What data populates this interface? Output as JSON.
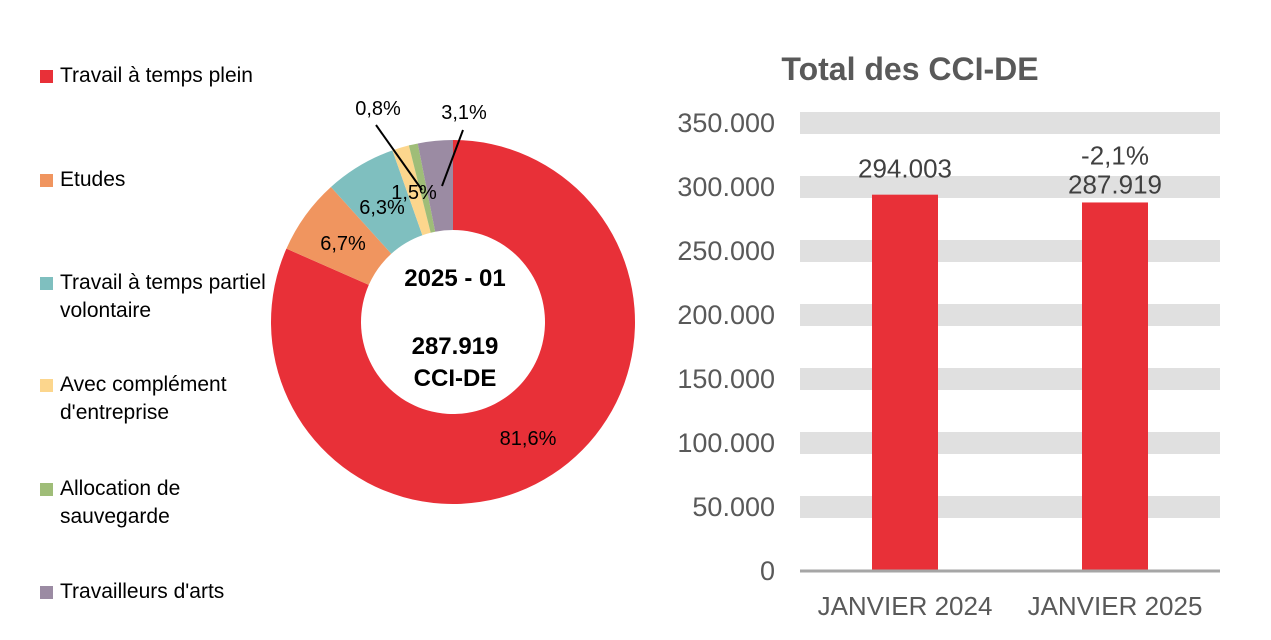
{
  "legend": [
    {
      "label": "Travail à temps plein",
      "color": "#e83038"
    },
    {
      "label": "Etudes",
      "color": "#f0955f"
    },
    {
      "label": "Travail à temps partiel volontaire",
      "color": "#7fbfbf"
    },
    {
      "label": "Avec complément d'entreprise",
      "color": "#fcd68d"
    },
    {
      "label": "Allocation de sauvegarde",
      "color": "#9fbd78"
    },
    {
      "label": "Travailleurs d'arts",
      "color": "#9b8ba3"
    }
  ],
  "chart_data": [
    {
      "type": "pie",
      "donut": true,
      "center_text": {
        "period": "2025 - 01",
        "value": "287.919",
        "unit": "CCI-DE"
      },
      "slices": [
        {
          "name": "Travail à temps plein",
          "value": 81.6,
          "label": "81,6%",
          "color": "#e83038"
        },
        {
          "name": "Etudes",
          "value": 6.7,
          "label": "6,7%",
          "color": "#f0955f"
        },
        {
          "name": "Travail à temps partiel volontaire",
          "value": 6.3,
          "label": "6,3%",
          "color": "#7fbfbf"
        },
        {
          "name": "Avec complément d'entreprise",
          "value": 1.5,
          "label": "1,5%",
          "color": "#fcd68d"
        },
        {
          "name": "Allocation de sauvegarde",
          "value": 0.8,
          "label": "0,8%",
          "color": "#9fbd78"
        },
        {
          "name": "Travailleurs d'arts",
          "value": 3.1,
          "label": "3,1%",
          "color": "#9b8ba3"
        }
      ]
    },
    {
      "type": "bar",
      "title": "Total des CCI-DE",
      "categories": [
        "JANVIER 2024",
        "JANVIER 2025"
      ],
      "values": [
        294003,
        287919
      ],
      "data_labels": [
        "294.003",
        "287.919"
      ],
      "change_label": "-2,1%",
      "ylim": [
        0,
        350000
      ],
      "yticks": [
        "0",
        "50.000",
        "100.000",
        "150.000",
        "200.000",
        "250.000",
        "300.000",
        "350.000"
      ],
      "bar_color": "#e83038",
      "grid": true
    }
  ]
}
